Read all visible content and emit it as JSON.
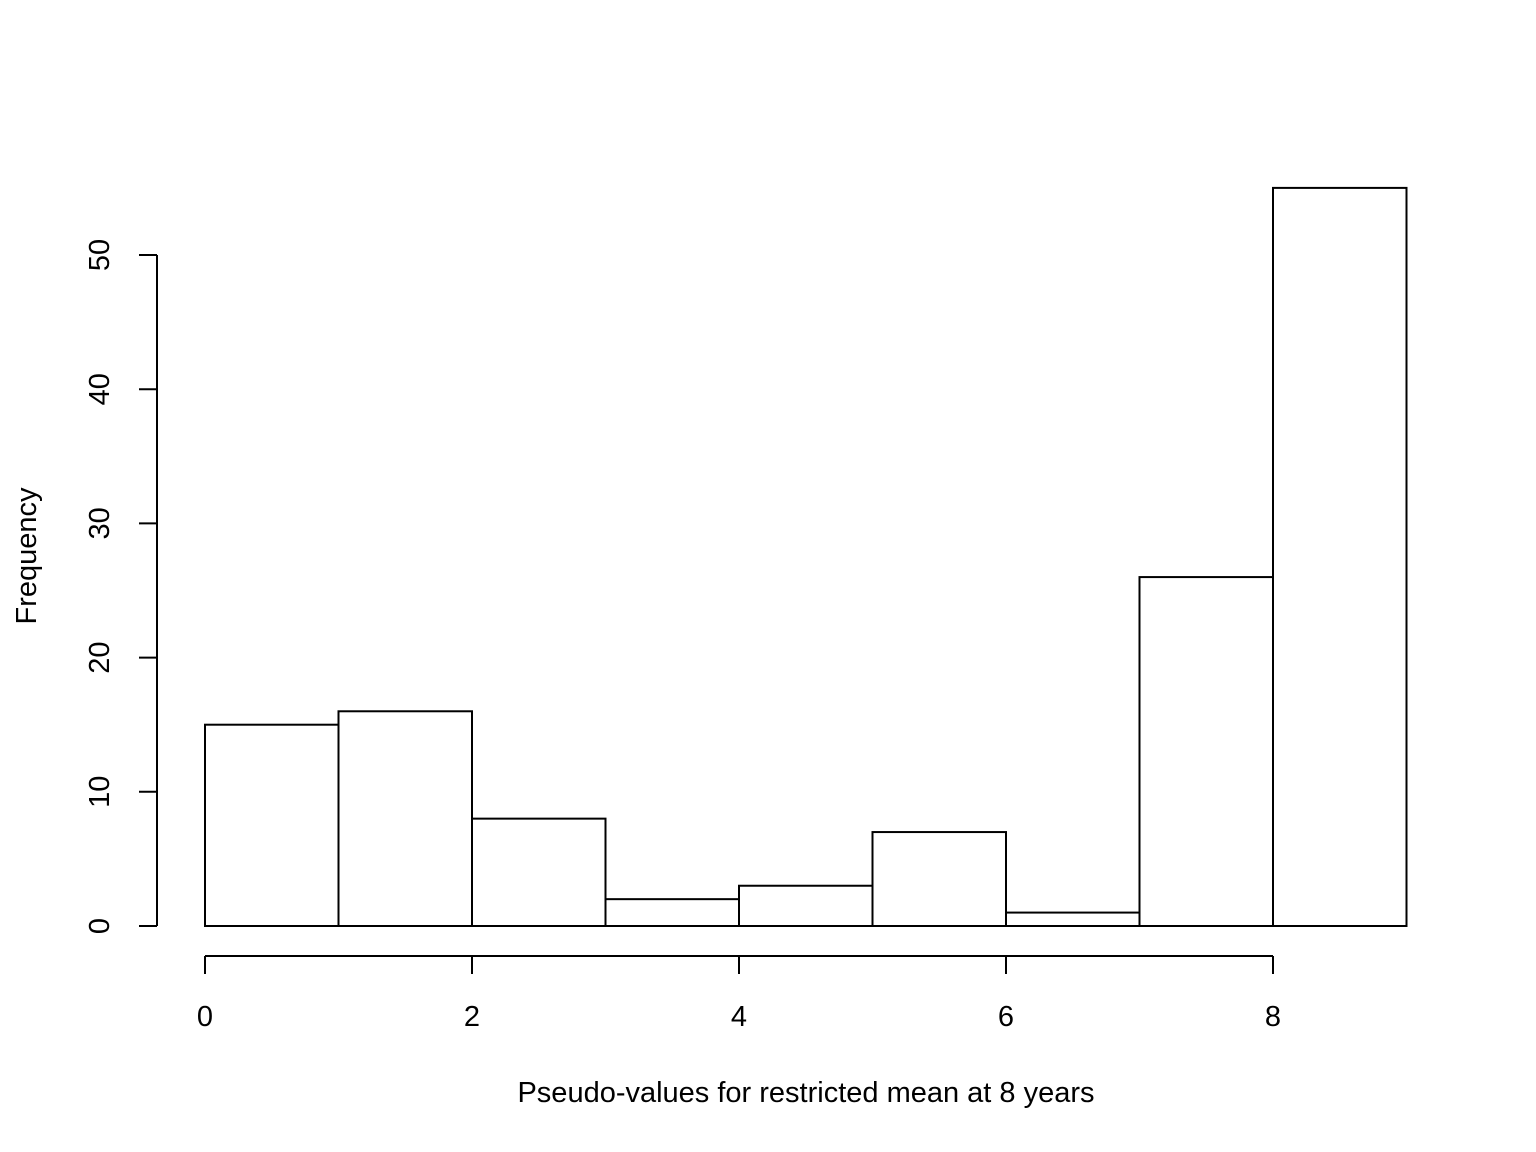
{
  "chart_data": {
    "type": "bar",
    "title": "",
    "xlabel": "Pseudo-values for restricted mean at 8 years",
    "ylabel": "Frequency",
    "bins": [
      {
        "x0": 0,
        "x1": 1,
        "count": 15
      },
      {
        "x0": 1,
        "x1": 2,
        "count": 16
      },
      {
        "x0": 2,
        "x1": 3,
        "count": 8
      },
      {
        "x0": 3,
        "x1": 4,
        "count": 2
      },
      {
        "x0": 4,
        "x1": 5,
        "count": 3
      },
      {
        "x0": 5,
        "x1": 6,
        "count": 7
      },
      {
        "x0": 6,
        "x1": 7,
        "count": 1
      },
      {
        "x0": 7,
        "x1": 8,
        "count": 26
      },
      {
        "x0": 8,
        "x1": 9,
        "count": 55
      }
    ],
    "x_ticks": [
      "0",
      "2",
      "4",
      "6",
      "8"
    ],
    "y_ticks": [
      "0",
      "10",
      "20",
      "30",
      "40",
      "50"
    ],
    "xlim": [
      0,
      9
    ],
    "ylim": [
      0,
      55
    ],
    "grid": false,
    "legend": "none",
    "colors": {
      "bar_fill": "#ffffff",
      "bar_stroke": "#000000"
    }
  }
}
